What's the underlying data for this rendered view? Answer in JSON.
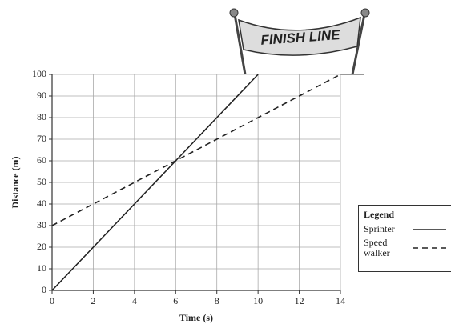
{
  "chart_data": {
    "type": "line",
    "banner": "FINISH LINE",
    "x_label": "Time (s)",
    "y_label": "Distance (m)",
    "x": [
      0,
      2,
      4,
      6,
      8,
      10,
      12,
      14
    ],
    "series": [
      {
        "name": "Sprinter",
        "color": "#222222",
        "linestyle": "solid",
        "values": [
          0,
          20,
          40,
          60,
          80,
          100,
          null,
          null
        ]
      },
      {
        "name": "Speed walker",
        "color": "#222222",
        "linestyle": "dashed",
        "values": [
          30,
          40,
          50,
          60,
          70,
          80,
          90,
          100
        ]
      }
    ],
    "xlim": [
      0,
      14
    ],
    "xticks": [
      0,
      2,
      4,
      6,
      8,
      10,
      12,
      14
    ],
    "ylim": [
      0,
      100
    ],
    "yticks": [
      0,
      10,
      20,
      30,
      40,
      50,
      60,
      70,
      80,
      90,
      100
    ],
    "grid": true,
    "legend_title": "Legend",
    "legend_position": "right"
  }
}
